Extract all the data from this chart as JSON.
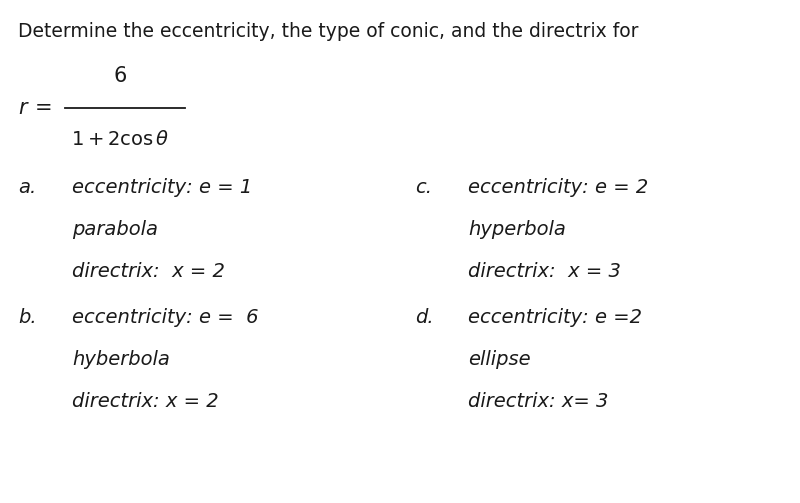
{
  "background_color": "#ffffff",
  "title_text": "Determine the eccentricity, the type of conic, and the directrix for",
  "text_color": "#1a1a1a",
  "title_fontsize": 13.5,
  "formula_fontsize": 15.0,
  "main_fontsize": 14.0,
  "options": [
    {
      "label": "a.",
      "line1": "eccentricity: e = 1",
      "line2": "parabola",
      "line3": "directrix:  x = 2",
      "col": "left"
    },
    {
      "label": "b.",
      "line1": "eccentricity: e =  6",
      "line2": "hyberbola",
      "line3": "directrix: x = 2",
      "col": "left"
    },
    {
      "label": "c.",
      "line1": "eccentricity: e = 2",
      "line2": "hyperbola",
      "line3": "directrix:  x = 3",
      "col": "right"
    },
    {
      "label": "d.",
      "line1": "eccentricity: e =2",
      "line2": "ellipse",
      "line3": "directrix: x= 3",
      "col": "right"
    }
  ]
}
